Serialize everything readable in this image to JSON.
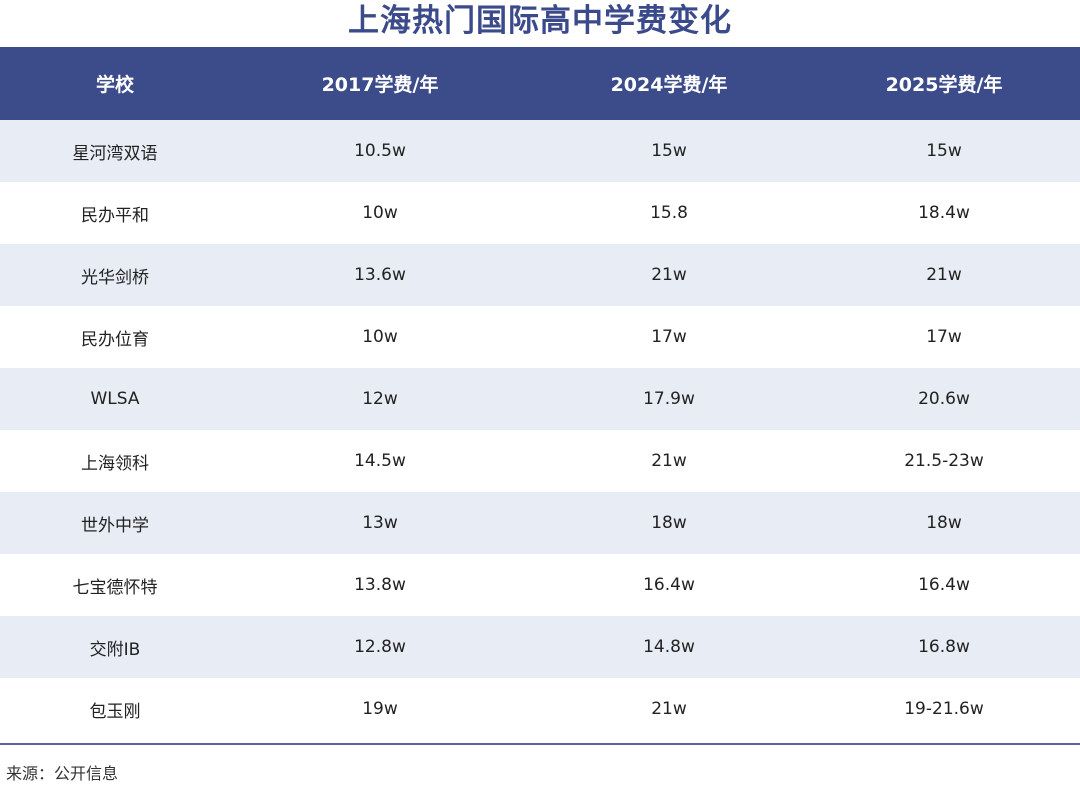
{
  "title": "上海热门国际高中学费变化",
  "colors": {
    "header_bg": "#3c4c8b",
    "title": "#3b4a8a",
    "row_shade": "#e8ecf5",
    "rule": "#5a63a8"
  },
  "chart_data": {
    "type": "table",
    "title": "上海热门国际高中学费变化",
    "columns": [
      "学校",
      "2017学费/年",
      "2024学费/年",
      "2025学费/年"
    ],
    "rows": [
      [
        "星河湾双语",
        "10.5w",
        "15w",
        "15w"
      ],
      [
        "民办平和",
        "10w",
        "15.8",
        "18.4w"
      ],
      [
        "光华剑桥",
        "13.6w",
        "21w",
        "21w"
      ],
      [
        "民办位育",
        "10w",
        "17w",
        "17w"
      ],
      [
        "WLSA",
        "12w",
        "17.9w",
        "20.6w"
      ],
      [
        "上海领科",
        "14.5w",
        "21w",
        "21.5-23w"
      ],
      [
        "世外中学",
        "13w",
        "18w",
        "18w"
      ],
      [
        "七宝德怀特",
        "13.8w",
        "16.4w",
        "16.4w"
      ],
      [
        "交附IB",
        "12.8w",
        "14.8w",
        "16.8w"
      ],
      [
        "包玉刚",
        "19w",
        "21w",
        "19-21.6w"
      ]
    ]
  },
  "source": "来源：公开信息"
}
